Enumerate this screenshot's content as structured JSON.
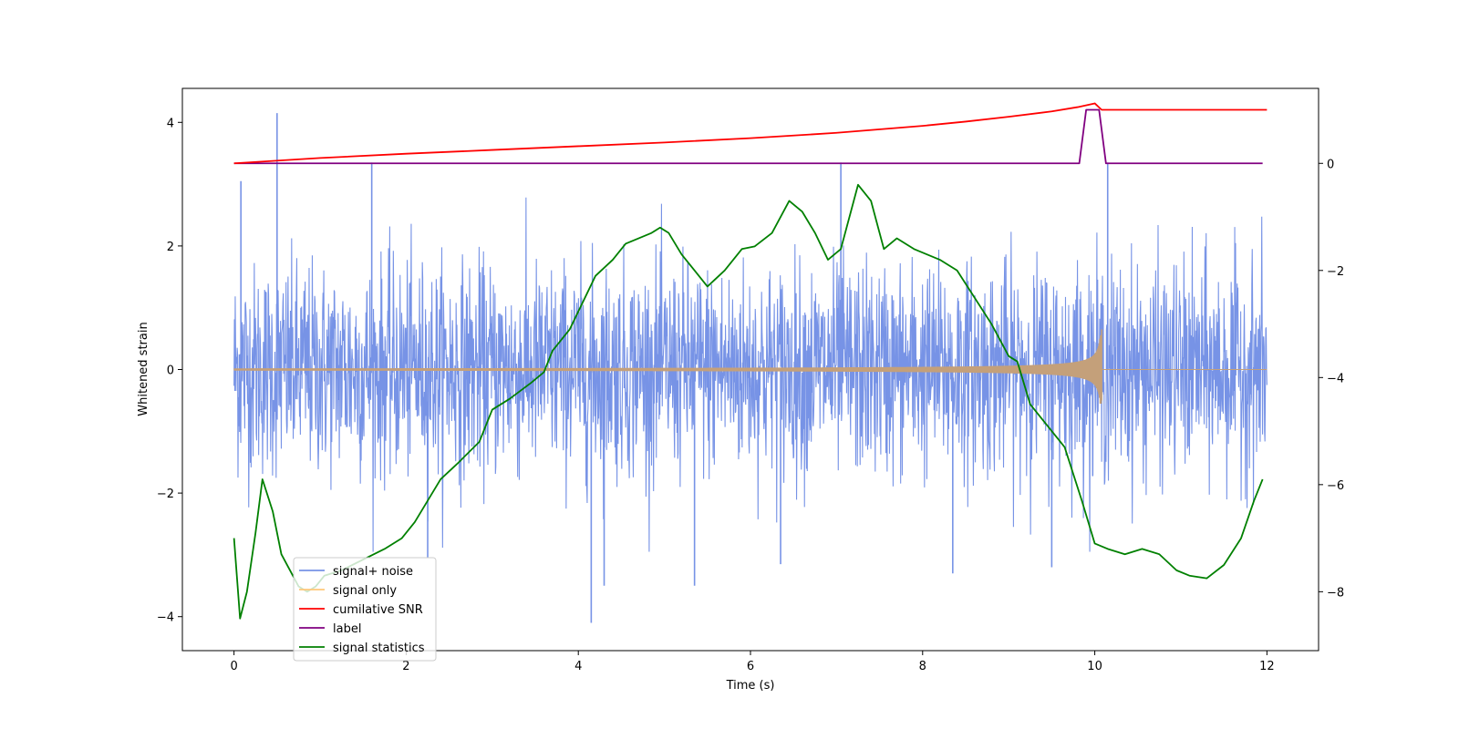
{
  "chart_data": {
    "type": "line",
    "xlabel": "Time (s)",
    "ylabel": "Whitened strain",
    "xlim": [
      -0.6,
      12.6
    ],
    "ylim_left": [
      -4.55,
      4.55
    ],
    "ylim_right": [
      -9.1,
      1.4
    ],
    "x_ticks": [
      0,
      2,
      4,
      6,
      8,
      10,
      12
    ],
    "x_tick_labels": [
      "0",
      "2",
      "4",
      "6",
      "8",
      "10",
      "12"
    ],
    "y_left_ticks": [
      -4,
      -2,
      0,
      2,
      4
    ],
    "y_left_tick_labels": [
      "−4",
      "−2",
      "0",
      "2",
      "4"
    ],
    "y_right_ticks": [
      -8,
      -6,
      -4,
      -2,
      0
    ],
    "y_right_tick_labels": [
      "−8",
      "−6",
      "−4",
      "−2",
      "0"
    ],
    "grid": false,
    "legend": {
      "position": "bottom-left",
      "entries": [
        {
          "label": "signal+ noise",
          "color": "#7793e6"
        },
        {
          "label": "signal only",
          "color": "#ffc87a"
        },
        {
          "label": "cumilative SNR",
          "color": "#ff0000"
        },
        {
          "label": "label",
          "color": "#800080"
        },
        {
          "label": "signal statistics",
          "color": "#008000"
        }
      ]
    },
    "series": [
      {
        "name": "signal+ noise",
        "axis": "left",
        "color": "#7793e6",
        "x_range": [
          0,
          12
        ],
        "envelope_sigma": 1.0,
        "spikes": [
          {
            "x": 0.5,
            "y": 4.15
          },
          {
            "x": 1.6,
            "y": 3.35
          },
          {
            "x": 4.15,
            "y": -4.1
          },
          {
            "x": 7.05,
            "y": 3.35
          },
          {
            "x": 10.15,
            "y": 3.35
          },
          {
            "x": 4.3,
            "y": -3.5
          },
          {
            "x": 5.35,
            "y": -3.5
          },
          {
            "x": 8.35,
            "y": -3.3
          },
          {
            "x": 2.25,
            "y": -3.05
          },
          {
            "x": 0.08,
            "y": 3.05
          },
          {
            "x": 6.35,
            "y": -3.15
          },
          {
            "x": 9.5,
            "y": -3.2
          }
        ]
      },
      {
        "name": "signal only",
        "axis": "left",
        "color": "#ffc87a",
        "x_range": [
          0,
          12
        ],
        "chirp_end": 10.08,
        "chirp_peak_amplitude": [
          0.65,
          -0.5
        ]
      },
      {
        "name": "cumilative SNR",
        "axis": "right",
        "color": "#ff0000",
        "x": [
          0,
          1,
          2,
          3,
          4,
          5,
          6,
          7,
          8,
          8.5,
          9,
          9.5,
          9.8,
          10.0,
          10.08,
          10.1,
          11,
          12
        ],
        "y": [
          0,
          0.1,
          0.18,
          0.25,
          0.32,
          0.39,
          0.47,
          0.57,
          0.7,
          0.78,
          0.87,
          0.97,
          1.05,
          1.12,
          1.0,
          1.0,
          1.0,
          1.0
        ]
      },
      {
        "name": "label",
        "axis": "right",
        "color": "#800080",
        "x": [
          0,
          9.82,
          9.9,
          10.05,
          10.13,
          11.95
        ],
        "y": [
          0,
          0,
          1.0,
          1.0,
          0,
          0
        ]
      },
      {
        "name": "signal statistics",
        "axis": "right",
        "color": "#008000",
        "x": [
          0,
          0.07,
          0.15,
          0.25,
          0.33,
          0.45,
          0.55,
          0.65,
          0.75,
          0.85,
          0.95,
          1.05,
          1.25,
          1.5,
          1.75,
          1.95,
          2.0,
          2.1,
          2.25,
          2.4,
          2.6,
          2.85,
          3.0,
          3.2,
          3.45,
          3.6,
          3.7,
          3.8,
          3.9,
          4.05,
          4.2,
          4.4,
          4.55,
          4.7,
          4.85,
          4.95,
          5.05,
          5.2,
          5.5,
          5.7,
          5.9,
          6.05,
          6.25,
          6.45,
          6.6,
          6.75,
          6.9,
          7.05,
          7.25,
          7.4,
          7.55,
          7.7,
          7.9,
          8.05,
          8.2,
          8.4,
          8.6,
          8.8,
          9.0,
          9.1,
          9.25,
          9.45,
          9.65,
          9.85,
          10.0,
          10.15,
          10.35,
          10.55,
          10.75,
          10.95,
          11.1,
          11.3,
          11.5,
          11.7,
          11.85,
          11.95
        ],
        "y": [
          -7.0,
          -8.5,
          -8.0,
          -6.9,
          -5.9,
          -6.5,
          -7.3,
          -7.6,
          -7.9,
          -8.0,
          -7.9,
          -7.7,
          -7.6,
          -7.4,
          -7.2,
          -7.0,
          -6.9,
          -6.7,
          -6.3,
          -5.9,
          -5.6,
          -5.2,
          -4.6,
          -4.4,
          -4.1,
          -3.9,
          -3.5,
          -3.3,
          -3.1,
          -2.6,
          -2.1,
          -1.8,
          -1.5,
          -1.4,
          -1.3,
          -1.2,
          -1.3,
          -1.7,
          -2.3,
          -2.0,
          -1.6,
          -1.55,
          -1.3,
          -0.7,
          -0.9,
          -1.3,
          -1.8,
          -1.6,
          -0.4,
          -0.7,
          -1.6,
          -1.4,
          -1.6,
          -1.7,
          -1.8,
          -2.0,
          -2.5,
          -3.0,
          -3.6,
          -3.7,
          -4.5,
          -4.9,
          -5.3,
          -6.3,
          -7.1,
          -7.2,
          -7.3,
          -7.2,
          -7.3,
          -7.6,
          -7.7,
          -7.75,
          -7.5,
          -7.0,
          -6.3,
          -5.9
        ]
      }
    ]
  }
}
